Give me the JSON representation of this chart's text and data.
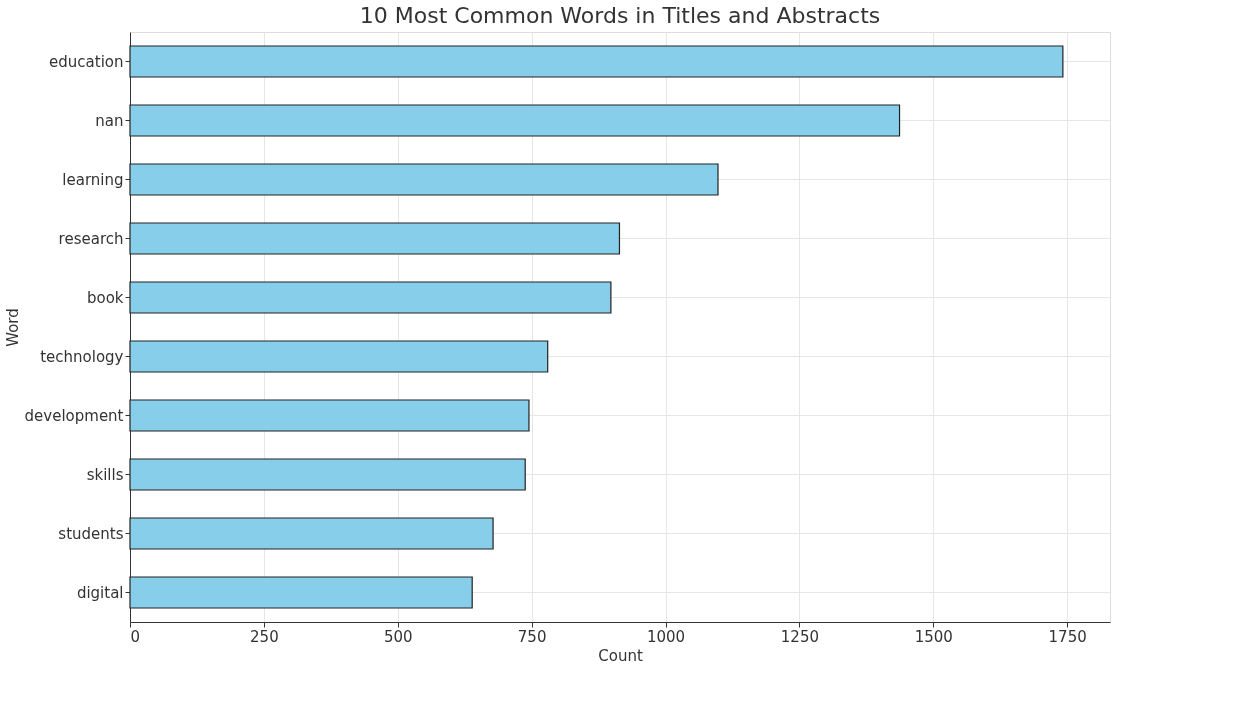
{
  "chart_data": {
    "type": "bar",
    "orientation": "horizontal",
    "title": "10 Most Common Words in Titles and Abstracts",
    "xlabel": "Count",
    "ylabel": "Word",
    "categories": [
      "education",
      "nan",
      "learning",
      "research",
      "book",
      "technology",
      "development",
      "skills",
      "students",
      "digital"
    ],
    "values": [
      1742,
      1437,
      1098,
      914,
      898,
      780,
      745,
      738,
      678,
      639
    ],
    "color": "#87ceeb",
    "xlim": [
      0,
      1830
    ],
    "xticks": [
      0,
      250,
      500,
      750,
      1000,
      1250,
      1500,
      1750
    ],
    "grid": true
  }
}
